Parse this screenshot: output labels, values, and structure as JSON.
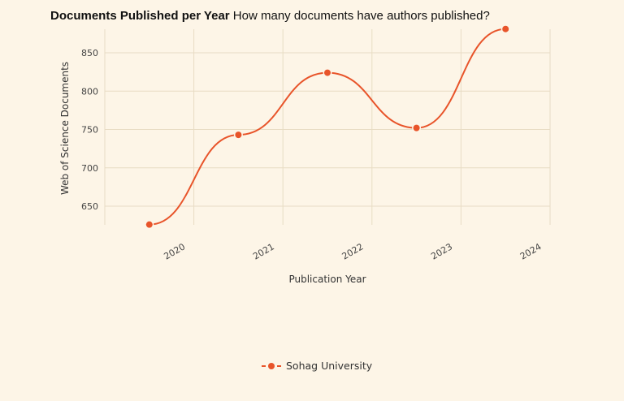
{
  "header": {
    "title_bold": "Documents Published per Year",
    "title_rest": " How many documents have authors published?"
  },
  "legend": {
    "label": "Sohag University",
    "color": "#e8542a"
  },
  "colors": {
    "background": "#fdf5e7",
    "grid": "#e8dcc4",
    "series": "#e8542a"
  },
  "chart_data": {
    "type": "line",
    "title": "Documents Published per Year",
    "subtitle": "How many documents have authors published?",
    "xlabel": "Publication Year",
    "ylabel": "Web of Science Documents",
    "categories": [
      "2020",
      "2021",
      "2022",
      "2023",
      "2024"
    ],
    "series": [
      {
        "name": "Sohag University",
        "values": [
          626,
          743,
          824,
          752,
          881
        ]
      }
    ],
    "yticks": [
      650,
      700,
      750,
      800,
      850
    ],
    "ylim": [
      626,
      881
    ],
    "grid": true,
    "smooth": true,
    "legend_position": "bottom"
  }
}
